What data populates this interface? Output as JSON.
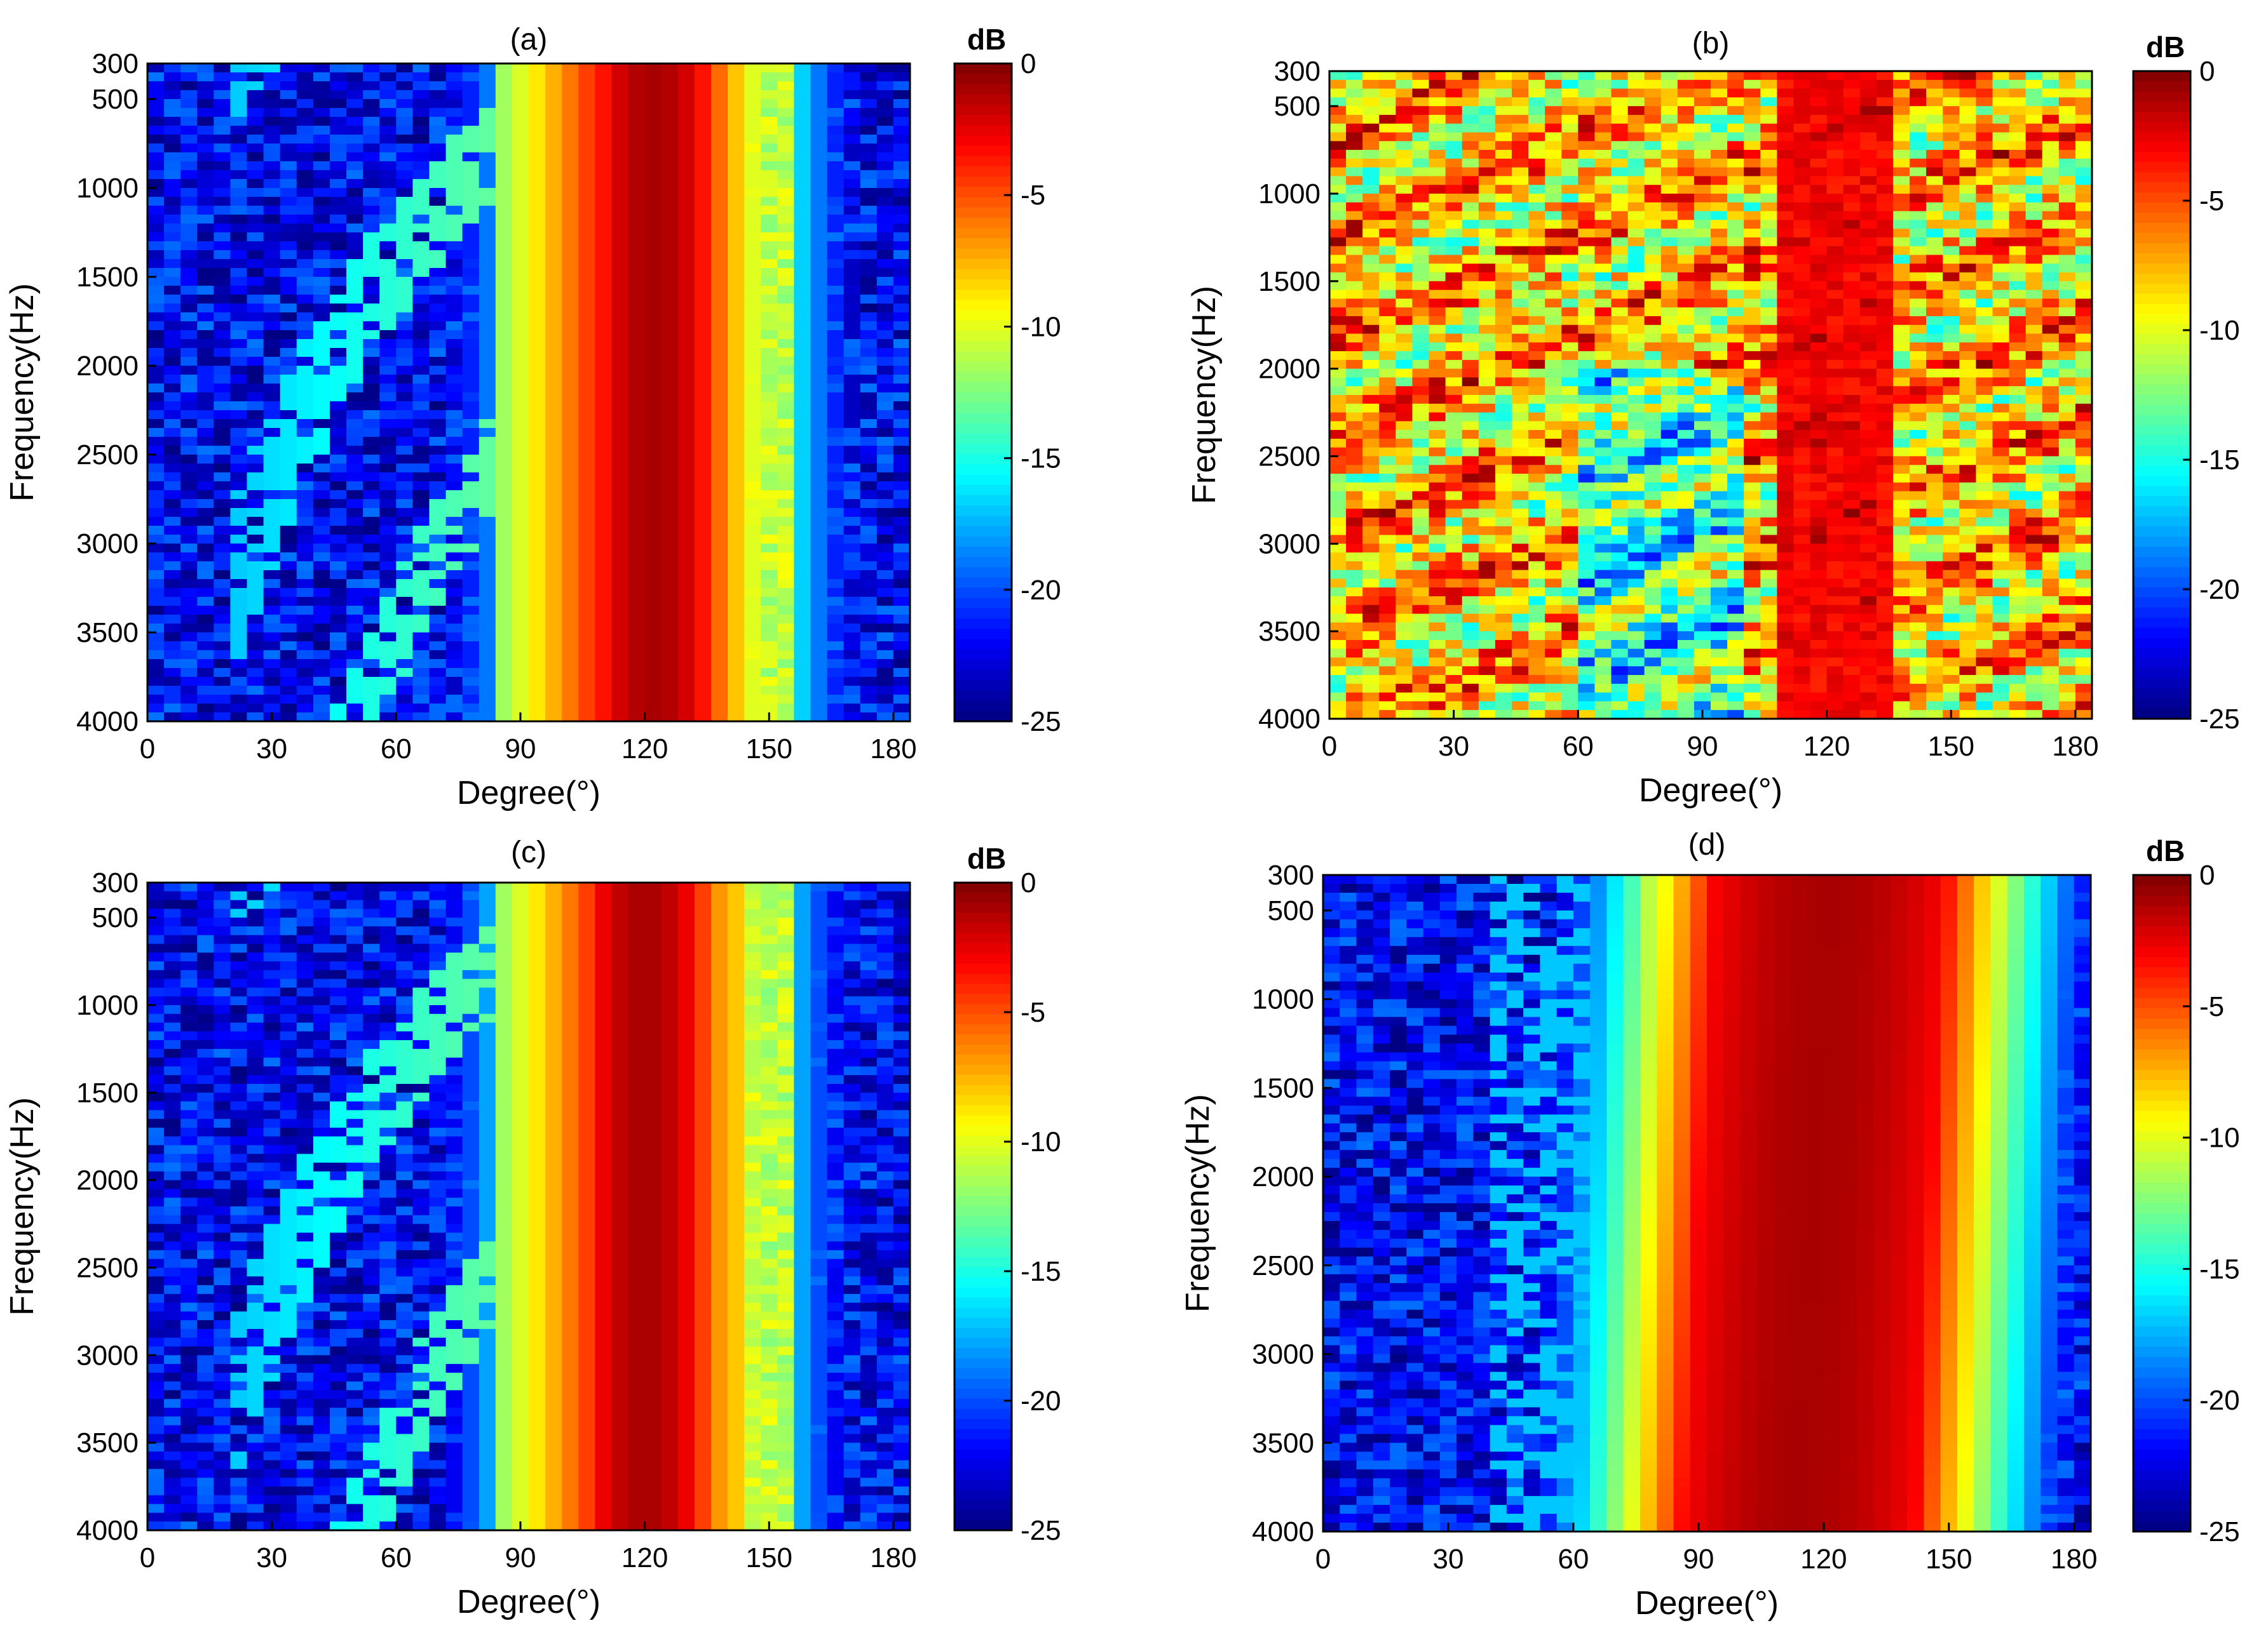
{
  "figure": {
    "panel_labels": [
      "(a)",
      "(b)",
      "(c)",
      "(d)"
    ]
  },
  "chart_data": [
    {
      "type": "heatmap",
      "title": "(a)",
      "xlabel": "Degree(°)",
      "ylabel": "Frequency(Hz)",
      "x_ticks": [
        0,
        30,
        60,
        90,
        120,
        150,
        180
      ],
      "y_ticks": [
        300,
        500,
        1000,
        1500,
        2000,
        2500,
        3000,
        3500,
        4000
      ],
      "xlim": [
        0,
        184
      ],
      "ylim": [
        300,
        4000
      ],
      "y_direction": "reversed",
      "colorbar": {
        "label": "dB",
        "ticks": [
          0,
          -5,
          -10,
          -15,
          -20,
          -25
        ],
        "range": [
          -25,
          0
        ],
        "colormap": "jet"
      },
      "description_data": {
        "main_lobe_center_deg": 122,
        "main_lobe_width_deg": 22,
        "side_band_deg": [
          145,
          155
        ],
        "background_level_db": -22,
        "pattern": "clean"
      }
    },
    {
      "type": "heatmap",
      "title": "(b)",
      "xlabel": "Degree(°)",
      "ylabel": "Frequency(Hz)",
      "x_ticks": [
        0,
        30,
        60,
        90,
        120,
        150,
        180
      ],
      "y_ticks": [
        300,
        500,
        1000,
        1500,
        2000,
        2500,
        3000,
        3500,
        4000
      ],
      "xlim": [
        0,
        184
      ],
      "ylim": [
        300,
        4000
      ],
      "y_direction": "reversed",
      "colorbar": {
        "label": "dB",
        "ticks": [
          0,
          -5,
          -10,
          -15,
          -20,
          -25
        ],
        "range": [
          -25,
          0
        ],
        "colormap": "jet"
      },
      "description_data": {
        "main_lobe_center_deg": 122,
        "main_lobe_width_deg": 30,
        "background_level_db": -9,
        "pattern": "noisy"
      }
    },
    {
      "type": "heatmap",
      "title": "(c)",
      "xlabel": "Degree(°)",
      "ylabel": "Frequency(Hz)",
      "x_ticks": [
        0,
        30,
        60,
        90,
        120,
        150,
        180
      ],
      "y_ticks": [
        300,
        500,
        1000,
        1500,
        2000,
        2500,
        3000,
        3500,
        4000
      ],
      "xlim": [
        0,
        184
      ],
      "ylim": [
        300,
        4000
      ],
      "y_direction": "reversed",
      "colorbar": {
        "label": "dB",
        "ticks": [
          0,
          -5,
          -10,
          -15,
          -20,
          -25
        ],
        "range": [
          -25,
          0
        ],
        "colormap": "jet"
      },
      "description_data": {
        "main_lobe_center_deg": 120,
        "main_lobe_width_deg": 22,
        "side_band_deg": [
          145,
          155
        ],
        "background_level_db": -22,
        "pattern": "clean"
      }
    },
    {
      "type": "heatmap",
      "title": "(d)",
      "xlabel": "Degree(°)",
      "ylabel": "Frequency(Hz)",
      "x_ticks": [
        0,
        30,
        60,
        90,
        120,
        150,
        180
      ],
      "y_ticks": [
        300,
        500,
        1000,
        1500,
        2000,
        2500,
        3000,
        3500,
        4000
      ],
      "xlim": [
        0,
        184
      ],
      "ylim": [
        300,
        4000
      ],
      "y_direction": "reversed",
      "colorbar": {
        "label": "dB",
        "ticks": [
          0,
          -5,
          -10,
          -15,
          -20,
          -25
        ],
        "range": [
          -25,
          0
        ],
        "colormap": "jet"
      },
      "description_data": {
        "main_lobe_center_deg": 118,
        "main_lobe_width_deg": 55,
        "background_level_db": -22,
        "pattern": "wide"
      }
    }
  ]
}
